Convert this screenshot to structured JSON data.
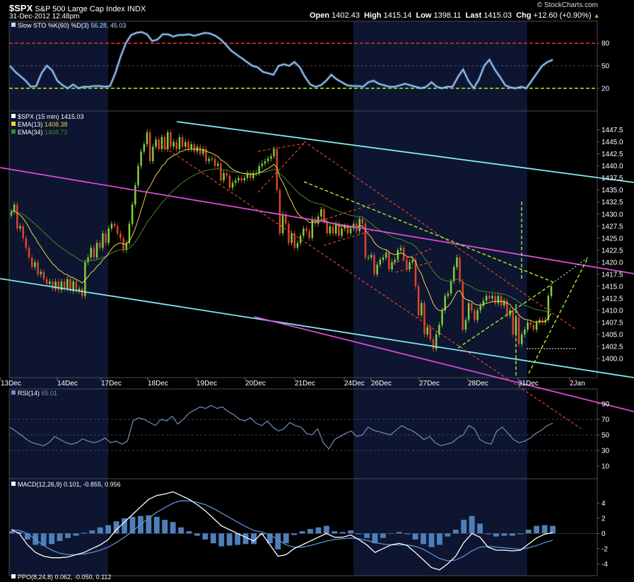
{
  "header": {
    "symbol": "$SPX",
    "name": "S&P 500 Large Cap Index",
    "exchange": "INDX",
    "datetime": "31-Dec-2012 12:48pm",
    "open_label": "Open",
    "open": "1402.43",
    "high_label": "High",
    "high": "1415.14",
    "low_label": "Low",
    "low": "1398.11",
    "last_label": "Last",
    "last": "1415.03",
    "chg_label": "Chg",
    "chg": "+12.60 (+0.90%)",
    "watermark": "© StockCharts.com"
  },
  "colors": {
    "background": "#000000",
    "panel_border": "#4a4a4a",
    "shade_band": "#0d1530",
    "price_up": "#7fd13b",
    "price_down": "#e0442a",
    "ema13": "#e8d44a",
    "ema34": "#3f8a2a",
    "sto_line": "#b9d8ff",
    "sto_80": "#e02a2a",
    "sto_20": "#9be22e",
    "rsi": "#6e8fb8",
    "macd": "#ffffff",
    "macd_signal": "#5b8fd6",
    "macd_hist": "#4f7fb8",
    "cyan": "#7fe7ee",
    "magenta": "#d84bd8",
    "red_dash": "#e0442a",
    "green_dash": "#9be22e",
    "white_dash": "#ffffff"
  },
  "x_axis": {
    "labels": [
      "13Dec",
      "14Dec",
      "17Dec",
      "18Dec",
      "19Dec",
      "20Dec",
      "21Dec",
      "24Dec",
      "26Dec",
      "27Dec",
      "28Dec",
      "31Dec",
      "2Jan"
    ]
  },
  "chart_data": [
    {
      "type": "line",
      "panel": "stochastic",
      "legend": {
        "name": "Slow STO %K(60) %D(3)",
        "value": "56.28, 45.03"
      },
      "ylim": [
        0,
        100
      ],
      "y_ticks": [
        "80",
        "50",
        "20"
      ],
      "reference_lines": [
        80,
        20
      ],
      "series": [
        {
          "name": "%K",
          "values": [
            50,
            42,
            36,
            30,
            22,
            23,
            40,
            50,
            44,
            30,
            24,
            20,
            25,
            20,
            22,
            22,
            23,
            23,
            22,
            23,
            40,
            62,
            80,
            91,
            94,
            95,
            92,
            83,
            85,
            92,
            92,
            89,
            91,
            91,
            92,
            90,
            92,
            94,
            93,
            90,
            85,
            78,
            70,
            65,
            60,
            55,
            50,
            48,
            42,
            40,
            38,
            50,
            52,
            50,
            55,
            48,
            35,
            25,
            22,
            24,
            30,
            38,
            32,
            28,
            24,
            23,
            23,
            22,
            28,
            30,
            26,
            24,
            22,
            22,
            24,
            26,
            24,
            22,
            20,
            22,
            28,
            22,
            20,
            22,
            22,
            35,
            45,
            30,
            20,
            32,
            50,
            58,
            45,
            35,
            24,
            21,
            20,
            22,
            20,
            30,
            40,
            50,
            55,
            58
          ]
        }
      ]
    },
    {
      "type": "candlestick",
      "panel": "price",
      "legend": [
        {
          "name": "$SPX (15 min)",
          "value": "1415.03"
        },
        {
          "name": "EMA(13)",
          "value": "1408.38"
        },
        {
          "name": "EMA(34)",
          "value": "1408.72"
        }
      ],
      "ylim": [
        1397.5,
        1449.5
      ],
      "y_ticks": [
        "1447.5",
        "1445.0",
        "1442.5",
        "1440.0",
        "1437.5",
        "1435.0",
        "1432.5",
        "1430.0",
        "1427.5",
        "1425.0",
        "1422.5",
        "1420.0",
        "1417.5",
        "1415.0",
        "1412.5",
        "1410.0",
        "1407.5",
        "1405.0",
        "1402.5",
        "1400.0"
      ],
      "close": [
        1430.5,
        1432,
        1427,
        1427.5,
        1425,
        1423,
        1421,
        1419,
        1420,
        1417.5,
        1418,
        1416.5,
        1415.5,
        1416,
        1414.5,
        1416,
        1414.2,
        1416,
        1414.5,
        1416.5,
        1414,
        1416,
        1414,
        1414.5,
        1413,
        1420,
        1421,
        1423,
        1421,
        1424,
        1423,
        1426,
        1424,
        1427,
        1428,
        1427.5,
        1426,
        1425,
        1422.5,
        1424,
        1428,
        1432,
        1436,
        1440,
        1443,
        1444.5,
        1447,
        1441,
        1444,
        1445.5,
        1443.5,
        1446,
        1443.5,
        1447,
        1444,
        1445,
        1443.5,
        1446,
        1444,
        1445,
        1443.5,
        1444.5,
        1443,
        1444,
        1442.5,
        1443.5,
        1441,
        1441.5,
        1441.5,
        1440,
        1440.5,
        1437,
        1438.5,
        1438,
        1435.5,
        1436.5,
        1437,
        1437.5,
        1437,
        1437.5,
        1438.5,
        1437.5,
        1438.5,
        1438.5,
        1440,
        1440.5,
        1441,
        1441.5,
        1442,
        1443.5,
        1435,
        1426,
        1430,
        1428,
        1424,
        1426,
        1423,
        1424,
        1425.5,
        1427,
        1426.5,
        1425,
        1429,
        1428,
        1429.5,
        1431,
        1428.5,
        1426,
        1427.5,
        1426,
        1428,
        1425.5,
        1427,
        1427.5,
        1426,
        1427,
        1428,
        1426.5,
        1429,
        1428,
        1421,
        1421,
        1421.5,
        1417.5,
        1419.5,
        1420.5,
        1421,
        1422,
        1418.5,
        1420,
        1420.5,
        1422.5,
        1423,
        1420.5,
        1418.5,
        1420,
        1420.5,
        1415,
        1409,
        1411.5,
        1405,
        1406.5,
        1404,
        1402,
        1405,
        1407,
        1410,
        1413,
        1413.5,
        1416,
        1419,
        1421,
        1416,
        1406,
        1408,
        1411.5,
        1410,
        1408,
        1410,
        1411,
        1412,
        1413,
        1412.5,
        1413,
        1411.5,
        1413,
        1411,
        1412,
        1409,
        1410,
        1405,
        1408.5,
        1403,
        1405,
        1406,
        1407.5,
        1407,
        1406,
        1407.5,
        1408,
        1407.5,
        1408,
        1413,
        1415
      ]
    },
    {
      "type": "line",
      "panel": "rsi",
      "legend": {
        "name": "RSI(14)",
        "value": "65.01"
      },
      "ylim": [
        0,
        100
      ],
      "y_ticks": [
        "90",
        "70",
        "50",
        "30",
        "10"
      ],
      "reference_lines": [
        70,
        50,
        30
      ],
      "series": [
        {
          "name": "RSI",
          "values": [
            60,
            55,
            50,
            44,
            40,
            38,
            36,
            40,
            48,
            44,
            40,
            38,
            40,
            45,
            42,
            40,
            42,
            46,
            40,
            42,
            38,
            42,
            68,
            72,
            70,
            66,
            62,
            70,
            68,
            74,
            64,
            70,
            78,
            82,
            86,
            84,
            88,
            84,
            86,
            80,
            76,
            70,
            68,
            72,
            65,
            62,
            68,
            60,
            55,
            58,
            66,
            62,
            60,
            52,
            50,
            58,
            40,
            32,
            44,
            48,
            52,
            55,
            48,
            50,
            60,
            56,
            54,
            52,
            50,
            56,
            62,
            58,
            55,
            50,
            44,
            48,
            40,
            36,
            38,
            40,
            46,
            50,
            62,
            58,
            44,
            40,
            38,
            55,
            60,
            52,
            44,
            40,
            42,
            46,
            52,
            56,
            62,
            65
          ]
        }
      ]
    },
    {
      "type": "line",
      "panel": "macd",
      "legend": {
        "name": "MACD(12,26,9)",
        "value": "0.101, -0.855, 0.956"
      },
      "ylim": [
        -5,
        6
      ],
      "y_ticks": [
        "4",
        "2",
        "0",
        "-2",
        "-4"
      ],
      "series": [
        {
          "name": "MACD",
          "values": [
            0.5,
            0,
            -1.5,
            -2.5,
            -3,
            -3.2,
            -3.2,
            -3.1,
            -2.8,
            -2.5,
            -2,
            -1.5,
            -0.8,
            0.5,
            1.5,
            2.5,
            3.5,
            4.5,
            5,
            5.2,
            5.5,
            5,
            4.5,
            3.8,
            3,
            2,
            1,
            0.5,
            0,
            -0.5,
            -1,
            0,
            -1.5,
            -3,
            -2.8,
            -2,
            -1.5,
            -1,
            -0.5,
            0,
            -0.5,
            -0.5,
            -0.2,
            -0.8,
            -1.5,
            -2.5,
            -2,
            -1.5,
            -1.3,
            -1.6,
            -2.5,
            -3.5,
            -4.5,
            -4.8,
            -4,
            -3,
            -1.2,
            0,
            -0.5,
            -1.8,
            -2.2,
            -2.2,
            -2.3,
            -2.2,
            -1.4,
            -0.6,
            -0.1,
            0.1
          ]
        },
        {
          "name": "Signal",
          "values": [
            0.5,
            0.4,
            0,
            -0.8,
            -1.6,
            -2.2,
            -2.6,
            -2.8,
            -2.8,
            -2.7,
            -2.5,
            -2.2,
            -1.8,
            -1.2,
            -0.5,
            0.3,
            1.2,
            2,
            2.8,
            3.4,
            4,
            4.3,
            4.3,
            4.1,
            3.8,
            3.3,
            2.7,
            2.1,
            1.5,
            0.9,
            0.4,
            0.2,
            -0.2,
            -0.8,
            -1.5,
            -1.8,
            -1.8,
            -1.6,
            -1.3,
            -1,
            -0.8,
            -0.7,
            -0.6,
            -0.7,
            -0.9,
            -1.2,
            -1.4,
            -1.5,
            -1.5,
            -1.5,
            -1.7,
            -2.1,
            -2.7,
            -3.3,
            -3.6,
            -3.5,
            -3,
            -2.3,
            -1.8,
            -1.7,
            -1.8,
            -1.9,
            -2,
            -2.1,
            -1.9,
            -1.6,
            -1.2,
            -0.9
          ]
        },
        {
          "name": "Histogram",
          "type": "bar",
          "values": [
            0.3,
            0.2,
            -0.8,
            -1.5,
            -1.6,
            -1.4,
            -1,
            -0.6,
            -0.3,
            0.1,
            0.4,
            0.8,
            1.1,
            1.6,
            2,
            2.2,
            2.3,
            2.4,
            2.2,
            1.8,
            1.5,
            0.8,
            0.3,
            -0.3,
            -0.8,
            -1.3,
            -1.7,
            -1.6,
            -1.5,
            -1.4,
            -1.4,
            -0.2,
            -1.3,
            -2.1,
            -1.3,
            -0.2,
            0.3,
            0.6,
            0.8,
            1,
            0.3,
            0.2,
            0.4,
            -0.1,
            -0.6,
            -1.3,
            -0.6,
            0,
            0.2,
            -0.1,
            -0.8,
            -1.4,
            -1.8,
            -1.5,
            -0.4,
            0.5,
            1.8,
            2.3,
            1.3,
            -0.1,
            -0.4,
            -0.3,
            -0.3,
            -0.1,
            0.5,
            1,
            1.1,
            1
          ]
        }
      ]
    }
  ],
  "footer": {
    "ppo_label": "PPO(8,24,8)",
    "ppo_value": "0.062, -0.050, 0.112"
  }
}
